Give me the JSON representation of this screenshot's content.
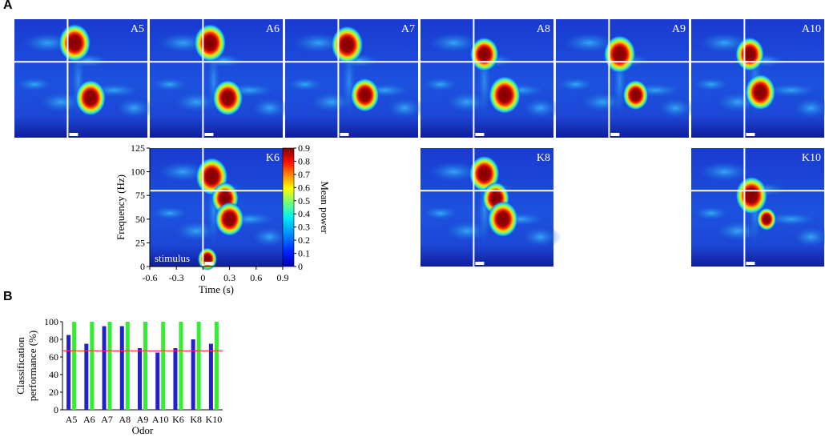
{
  "panels": {
    "a_label": "A",
    "b_label": "B"
  },
  "colors": {
    "background_blue": "#1530c4",
    "line_white": "#ffffff",
    "series_blue": "#2222cc",
    "series_green": "#33ee33",
    "chance_red": "#ff3333"
  },
  "spectrograms": {
    "tiles": [
      {
        "label": "A5",
        "blobs": [
          {
            "t": 0.08,
            "f": 100,
            "i": 1.0
          },
          {
            "t": 0.26,
            "f": 42,
            "i": 0.95
          }
        ]
      },
      {
        "label": "A6",
        "blobs": [
          {
            "t": 0.08,
            "f": 100,
            "i": 1.0
          },
          {
            "t": 0.28,
            "f": 42,
            "i": 0.95
          }
        ]
      },
      {
        "label": "A7",
        "blobs": [
          {
            "t": 0.1,
            "f": 98,
            "i": 1.0
          },
          {
            "t": 0.3,
            "f": 45,
            "i": 0.9
          }
        ]
      },
      {
        "label": "A8",
        "blobs": [
          {
            "t": 0.12,
            "f": 88,
            "i": 0.9
          },
          {
            "t": 0.35,
            "f": 45,
            "i": 1.0
          }
        ]
      },
      {
        "label": "A9",
        "blobs": [
          {
            "t": 0.12,
            "f": 88,
            "i": 1.0
          },
          {
            "t": 0.3,
            "f": 45,
            "i": 0.8
          }
        ]
      },
      {
        "label": "A10",
        "blobs": [
          {
            "t": 0.06,
            "f": 88,
            "i": 0.9
          },
          {
            "t": 0.18,
            "f": 48,
            "i": 0.95
          }
        ]
      },
      {
        "label": "K6",
        "blobs": [
          {
            "t": 0.1,
            "f": 95,
            "i": 1.0
          },
          {
            "t": 0.25,
            "f": 72,
            "i": 0.85
          },
          {
            "t": 0.3,
            "f": 50,
            "i": 0.9
          },
          {
            "t": 0.05,
            "f": 8,
            "i": 0.6
          }
        ]
      },
      {
        "label": "K8",
        "blobs": [
          {
            "t": 0.12,
            "f": 98,
            "i": 0.95
          },
          {
            "t": 0.25,
            "f": 72,
            "i": 0.85
          },
          {
            "t": 0.33,
            "f": 50,
            "i": 0.95
          }
        ]
      },
      {
        "label": "K10",
        "blobs": [
          {
            "t": 0.08,
            "f": 75,
            "i": 1.0
          },
          {
            "t": 0.25,
            "f": 50,
            "i": 0.6
          }
        ]
      }
    ],
    "freq_axis": {
      "label": "Frequency (Hz)",
      "ticks": [
        "125",
        "100",
        "75",
        "50",
        "25",
        "0"
      ]
    },
    "time_axis": {
      "label": "Time (s)",
      "ticks": [
        "-0.6",
        "-0.3",
        "0",
        "0.3",
        "0.6",
        "0.9"
      ]
    },
    "colorbar": {
      "label": "Mean power",
      "ticks": [
        "0.9",
        "0.8",
        "0.7",
        "0.6",
        "0.5",
        "0.4",
        "0.3",
        "0.2",
        "0.1",
        "0"
      ]
    },
    "stimulus_label": "stimulus"
  },
  "chart_data": {
    "type": "bar",
    "title": "",
    "xlabel": "Odor",
    "ylabel": "Classification performance (%)",
    "ylim": [
      0,
      100
    ],
    "yticks": [
      "0",
      "20",
      "40",
      "60",
      "80",
      "100"
    ],
    "categories": [
      "A5",
      "A6",
      "A7",
      "A8",
      "A9",
      "A10",
      "K6",
      "K8",
      "K10"
    ],
    "series": [
      {
        "color": "#2222cc",
        "values": [
          85,
          75,
          95,
          95,
          70,
          65,
          70,
          80,
          75
        ]
      },
      {
        "color": "#33ee33",
        "values": [
          100,
          100,
          100,
          100,
          100,
          100,
          100,
          100,
          100
        ]
      }
    ],
    "reference_line": 67,
    "grid": false
  }
}
